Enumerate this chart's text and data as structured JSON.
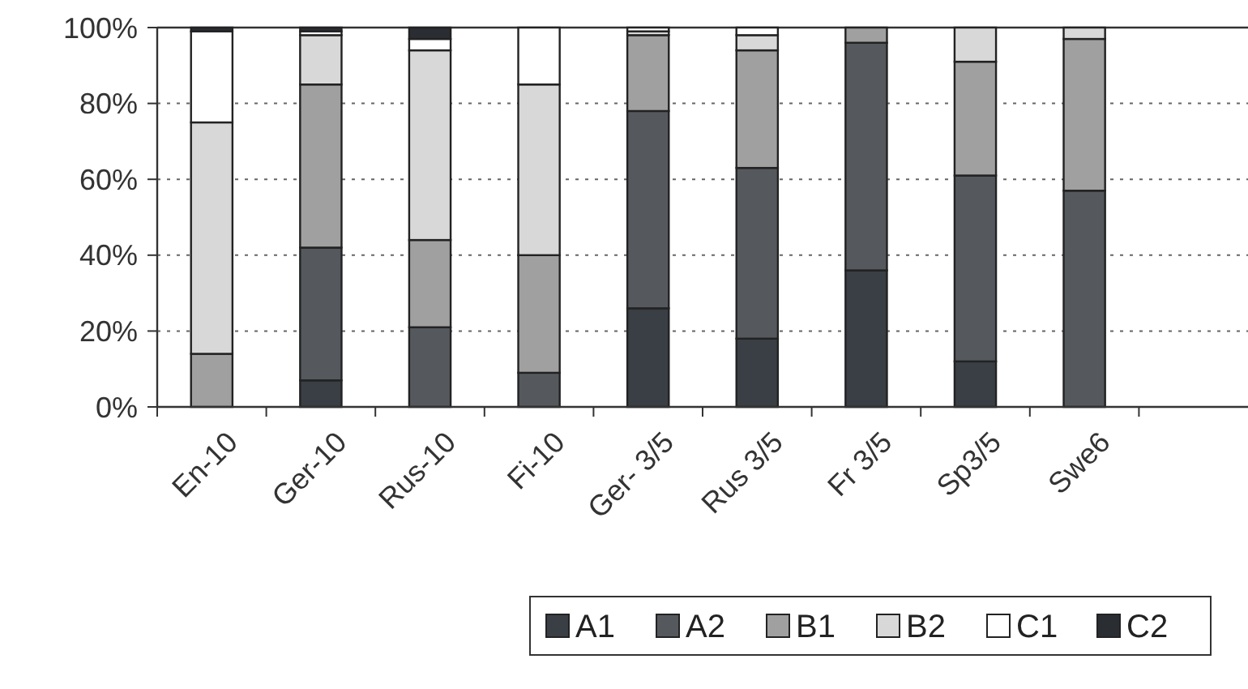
{
  "chart_data": {
    "type": "bar",
    "stacked": true,
    "categories": [
      "En-10",
      "Ger-10",
      "Rus-10",
      "Fi-10",
      "Ger- 3/5",
      "Rus 3/5",
      "Fr 3/5",
      "Sp3/5",
      "Swe6",
      null
    ],
    "series": [
      {
        "name": "A1",
        "color": "#3a3f45",
        "values": [
          null,
          7,
          0,
          0,
          26,
          18,
          36,
          12,
          null,
          null
        ]
      },
      {
        "name": "A2",
        "color": "#55595e",
        "values": [
          0,
          35,
          21,
          9,
          52,
          45,
          60,
          49,
          57,
          null
        ]
      },
      {
        "name": "B1",
        "color": "#a0a0a0",
        "values": [
          14,
          43,
          23,
          31,
          20,
          31,
          4,
          30,
          40,
          null
        ]
      },
      {
        "name": "B2",
        "color": "#d8d8d8",
        "values": [
          61,
          13,
          50,
          45,
          1,
          4,
          0,
          9,
          3,
          null
        ]
      },
      {
        "name": "C1",
        "color": "#ffffff",
        "values": [
          24,
          1,
          3,
          15,
          1,
          2,
          0,
          0,
          0,
          null
        ]
      },
      {
        "name": "C2",
        "color": "#2a2e33",
        "values": [
          1,
          1,
          3,
          0,
          0,
          0,
          0,
          0,
          0,
          null
        ]
      }
    ],
    "ylim": [
      0,
      100
    ],
    "yticks": [
      {
        "value": 0,
        "label": "0%"
      },
      {
        "value": 20,
        "label": "20%"
      },
      {
        "value": 40,
        "label": "40%"
      },
      {
        "value": 60,
        "label": "60%"
      },
      {
        "value": 80,
        "label": "80%"
      },
      {
        "value": 100,
        "label": "100%"
      }
    ],
    "grid": "y",
    "legend": "bottom"
  }
}
